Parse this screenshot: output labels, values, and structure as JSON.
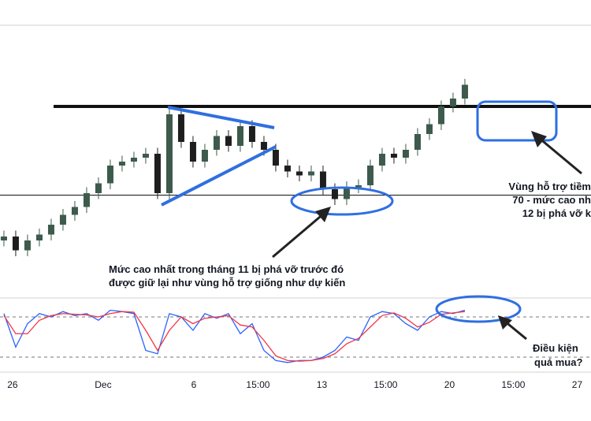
{
  "chart_data": [
    {
      "type": "candlestick",
      "x": [
        0,
        1,
        2,
        3,
        4,
        5,
        6,
        7,
        8,
        9,
        10,
        11,
        12,
        13,
        14,
        15,
        16,
        17,
        18,
        19,
        20,
        21,
        22,
        23,
        24,
        25,
        26,
        27,
        28,
        29,
        30,
        31,
        32,
        33,
        34,
        35,
        36,
        37,
        38,
        39
      ],
      "open": [
        14,
        16,
        9,
        14,
        17,
        22,
        27,
        31,
        38,
        43,
        52,
        54,
        56,
        58,
        38,
        78,
        64,
        54,
        60,
        67,
        62,
        72,
        64,
        60,
        52,
        49,
        47,
        49,
        40,
        35,
        41,
        42,
        52,
        58,
        56,
        60,
        68,
        73,
        82,
        86
      ],
      "high": [
        19,
        19,
        17,
        20,
        25,
        30,
        34,
        41,
        46,
        55,
        57,
        59,
        61,
        61,
        81,
        81,
        67,
        63,
        70,
        70,
        75,
        75,
        67,
        63,
        55,
        52,
        52,
        52,
        43,
        44,
        45,
        55,
        61,
        61,
        63,
        71,
        76,
        85,
        89,
        96
      ],
      "low": [
        11,
        6,
        6,
        11,
        14,
        19,
        24,
        28,
        35,
        40,
        49,
        51,
        53,
        35,
        35,
        61,
        51,
        51,
        57,
        59,
        59,
        61,
        57,
        49,
        46,
        44,
        44,
        37,
        32,
        32,
        38,
        39,
        49,
        53,
        53,
        57,
        65,
        70,
        79,
        83
      ],
      "close": [
        16,
        9,
        14,
        17,
        22,
        27,
        31,
        38,
        43,
        52,
        54,
        56,
        58,
        38,
        78,
        64,
        54,
        60,
        67,
        62,
        72,
        64,
        60,
        52,
        49,
        47,
        49,
        40,
        35,
        41,
        42,
        52,
        58,
        56,
        60,
        68,
        73,
        82,
        86,
        93
      ],
      "up_color": "#3d5a4c",
      "down_color": "#1e1e1e",
      "ylim": [
        0,
        100
      ],
      "levels": [
        82,
        37
      ],
      "xlim": [
        -0.33,
        49.67
      ],
      "xticks": [
        {
          "value": 0.73,
          "label": "26"
        },
        {
          "value": 8.4,
          "label": "Dec"
        },
        {
          "value": 16.07,
          "label": "6"
        },
        {
          "value": 21.5,
          "label": "15:00"
        },
        {
          "value": 26.9,
          "label": "13"
        },
        {
          "value": 32.3,
          "label": "15:00"
        },
        {
          "value": 37.7,
          "label": "20"
        },
        {
          "value": 43.1,
          "label": "15:00"
        },
        {
          "value": 48.5,
          "label": "27"
        }
      ],
      "annotations": [
        "Mức cao nhất trong tháng 11 bị phá vỡ trước đó",
        "được giữ lại như vùng hỗ trợ giống như dự kiến",
        "Vùng hỗ trợ tiềm",
        "70 - mức cao nh",
        "12 bị phá vỡ k"
      ]
    },
    {
      "type": "line",
      "x": [
        0,
        1,
        2,
        3,
        4,
        5,
        6,
        7,
        8,
        9,
        10,
        11,
        12,
        13,
        14,
        15,
        16,
        17,
        18,
        19,
        20,
        21,
        22,
        23,
        24,
        25,
        26,
        27,
        28,
        29,
        30,
        31,
        32,
        33,
        34,
        35,
        36,
        37,
        38,
        39
      ],
      "series": [
        {
          "color": "#2962ff",
          "values": [
            85,
            35,
            70,
            85,
            80,
            88,
            82,
            85,
            75,
            90,
            88,
            85,
            30,
            25,
            85,
            80,
            60,
            85,
            78,
            85,
            55,
            70,
            30,
            15,
            12,
            15,
            15,
            20,
            30,
            50,
            45,
            80,
            88,
            85,
            70,
            60,
            80,
            88,
            85,
            90
          ]
        },
        {
          "color": "#f23645",
          "values": [
            82,
            55,
            55,
            75,
            82,
            85,
            84,
            83,
            80,
            85,
            88,
            87,
            60,
            30,
            60,
            80,
            70,
            78,
            80,
            82,
            68,
            65,
            45,
            22,
            15,
            14,
            15,
            18,
            25,
            40,
            48,
            65,
            82,
            86,
            78,
            65,
            72,
            84,
            86,
            88
          ]
        }
      ],
      "ylim": [
        0,
        100
      ],
      "levels": [
        80,
        20
      ],
      "xlim": [
        -0.33,
        49.67
      ],
      "annotations": [
        "Điều kiện",
        "quá mua?"
      ]
    }
  ]
}
